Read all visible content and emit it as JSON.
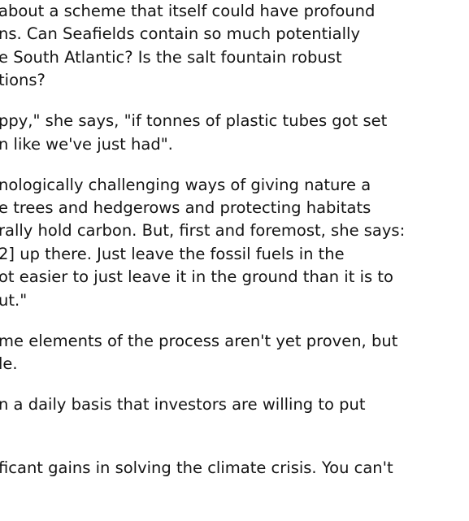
{
  "article": {
    "paragraphs": [
      [
        "about a scheme that itself could have profound",
        "ns. Can Seafields contain so much potentially",
        "e South Atlantic? Is the salt fountain robust",
        "tions?"
      ],
      [
        "ppy,\" she says, \"if tonnes of plastic tubes got set",
        "n like we've just had\"."
      ],
      [
        "nologically challenging ways of giving nature a",
        "e trees and hedgerows and protecting habitats",
        "rally hold carbon. But, first and foremost, she says:",
        "2] up there. Just leave the fossil fuels in the",
        "ot easier to just leave it in the ground than it is to",
        "ut.\""
      ],
      [
        "me elements of the process aren't yet proven, but",
        "le."
      ],
      [
        "n a daily basis that investors are willing to put",
        ""
      ],
      [
        "ficant gains in solving the climate crisis. You can't",
        "                              "
      ]
    ]
  }
}
